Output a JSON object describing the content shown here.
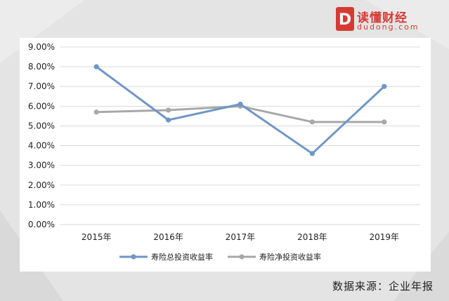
{
  "logo": {
    "name": "读懂财经",
    "domain": "dudong.com",
    "mark_letter": "D",
    "brand_color": "#d63a34"
  },
  "source_note": "数据来源：企业年报",
  "chart_data": {
    "type": "line",
    "categories": [
      "2015年",
      "2016年",
      "2017年",
      "2018年",
      "2019年"
    ],
    "series": [
      {
        "name": "寿险总投资收益率",
        "color": "#6f96c6",
        "values": [
          8.0,
          5.3,
          6.1,
          3.6,
          7.0
        ]
      },
      {
        "name": "寿险净投资收益率",
        "color": "#a8a8a8",
        "values": [
          5.7,
          5.8,
          6.0,
          5.2,
          5.2
        ]
      }
    ],
    "ylim": [
      0,
      9
    ],
    "yticks": [
      "0.00%",
      "1.00%",
      "2.00%",
      "3.00%",
      "4.00%",
      "5.00%",
      "6.00%",
      "7.00%",
      "8.00%",
      "9.00%"
    ],
    "y_tick_values": [
      0,
      1,
      2,
      3,
      4,
      5,
      6,
      7,
      8,
      9
    ],
    "grid": true,
    "legend_position": "bottom"
  }
}
